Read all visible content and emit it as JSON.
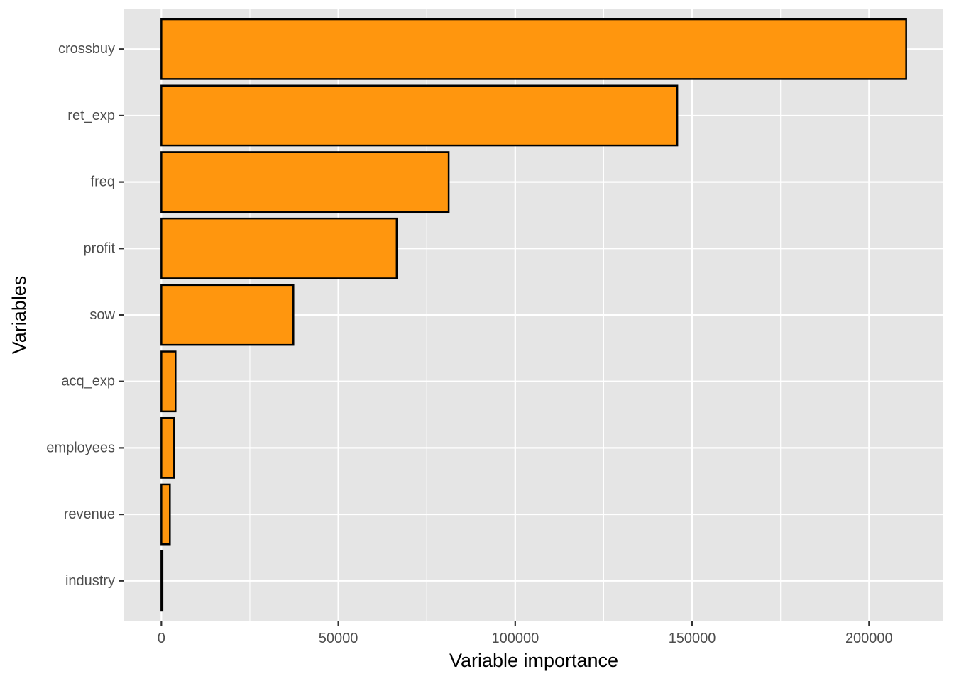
{
  "chart_data": {
    "type": "bar",
    "orientation": "horizontal",
    "categories": [
      "crossbuy",
      "ret_exp",
      "freq",
      "profit",
      "sow",
      "acq_exp",
      "employees",
      "revenue",
      "industry"
    ],
    "values": [
      210500,
      145800,
      81200,
      66500,
      37300,
      4000,
      3600,
      2400,
      300
    ],
    "xlabel": "Variable importance",
    "ylabel": "Variables",
    "xlim": [
      -10500,
      221000
    ],
    "xticks": [
      0,
      50000,
      100000,
      150000,
      200000
    ],
    "xtick_labels": [
      "0",
      "50000",
      "100000",
      "150000",
      "200000"
    ],
    "grid": true,
    "colors": {
      "bar_fill": "#FF960E",
      "bar_stroke": "#000000",
      "panel_bg": "#E5E5E5",
      "grid": "#FFFFFF",
      "tick": "#333333"
    }
  }
}
